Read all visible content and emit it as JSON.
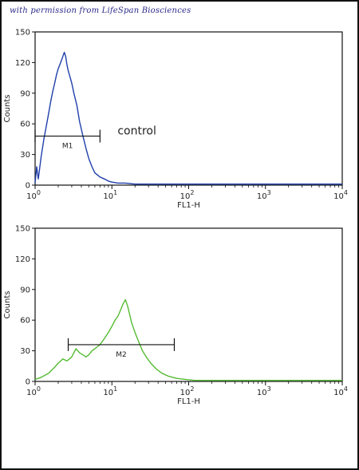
{
  "watermark": "with permission from LifeSpan Biosciences",
  "chart_data": [
    {
      "type": "line",
      "title": "",
      "xlabel": "FL1-H",
      "ylabel": "Counts",
      "xscale": "log",
      "xlim": [
        1,
        10000
      ],
      "ylim": [
        0,
        150
      ],
      "yticks": [
        0,
        30,
        60,
        90,
        120,
        150
      ],
      "xticks": [
        {
          "base": "10",
          "exp": "0"
        },
        {
          "base": "10",
          "exp": "1"
        },
        {
          "base": "10",
          "exp": "2"
        },
        {
          "base": "10",
          "exp": "3"
        },
        {
          "base": "10",
          "exp": "4"
        }
      ],
      "color": "#1f3faa",
      "gate": {
        "label": "M1",
        "x": [
          1,
          7
        ],
        "y": 48
      },
      "annotation": "control",
      "series": [
        {
          "x": [
            1.0,
            1.05,
            1.1,
            1.2,
            1.3,
            1.4,
            1.5,
            1.6,
            1.7,
            1.8,
            1.9,
            2.0,
            2.1,
            2.2,
            2.3,
            2.4,
            2.5,
            2.6,
            2.7,
            2.8,
            3.0,
            3.2,
            3.5,
            3.8,
            4.2,
            4.6,
            5.0,
            5.5,
            6.0,
            7.0,
            8.0,
            9.0,
            10,
            12,
            15,
            20,
            30,
            50,
            100,
            300,
            1000,
            3000,
            10000
          ],
          "y": [
            2,
            18,
            6,
            28,
            45,
            58,
            70,
            82,
            92,
            100,
            108,
            114,
            118,
            122,
            126,
            130,
            126,
            118,
            112,
            108,
            100,
            90,
            78,
            62,
            48,
            36,
            26,
            18,
            12,
            8,
            6,
            4,
            3,
            2,
            2,
            1,
            1,
            1,
            1,
            1,
            1,
            1,
            1
          ]
        }
      ]
    },
    {
      "type": "line",
      "title": "",
      "xlabel": "FL1-H",
      "ylabel": "Counts",
      "xscale": "log",
      "xlim": [
        1,
        10000
      ],
      "ylim": [
        0,
        150
      ],
      "yticks": [
        0,
        30,
        60,
        90,
        120,
        150
      ],
      "xticks": [
        {
          "base": "10",
          "exp": "0"
        },
        {
          "base": "10",
          "exp": "1"
        },
        {
          "base": "10",
          "exp": "2"
        },
        {
          "base": "10",
          "exp": "3"
        },
        {
          "base": "10",
          "exp": "4"
        }
      ],
      "color": "#55bb33",
      "gate": {
        "label": "M2",
        "x": [
          2.7,
          65
        ],
        "y": 36
      },
      "annotation": "",
      "series": [
        {
          "x": [
            1.0,
            1.2,
            1.5,
            1.8,
            2.0,
            2.3,
            2.6,
            3.0,
            3.4,
            3.8,
            4.2,
            4.6,
            5.0,
            5.5,
            6.0,
            7.0,
            8.0,
            9.0,
            10,
            11,
            12,
            13,
            14,
            15,
            16,
            17,
            18,
            20,
            22,
            25,
            28,
            32,
            38,
            45,
            55,
            70,
            90,
            120,
            200,
            500,
            1000,
            5000,
            10000
          ],
          "y": [
            2,
            4,
            8,
            14,
            18,
            22,
            20,
            24,
            32,
            28,
            26,
            24,
            26,
            30,
            32,
            36,
            42,
            48,
            54,
            60,
            64,
            70,
            76,
            80,
            74,
            66,
            58,
            48,
            40,
            30,
            24,
            18,
            12,
            8,
            5,
            3,
            2,
            1,
            1,
            1,
            1,
            1,
            1
          ]
        }
      ]
    }
  ]
}
